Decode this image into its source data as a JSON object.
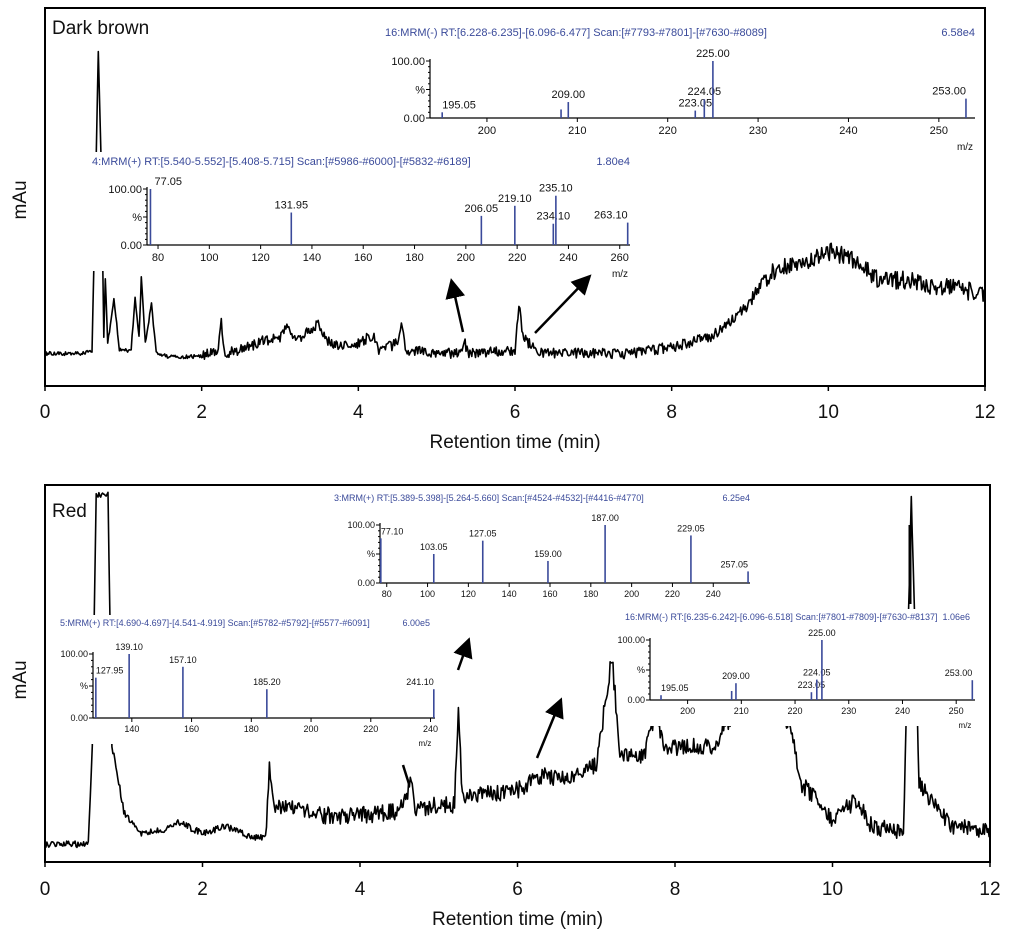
{
  "chart_data": [
    {
      "type": "line",
      "panel_label": "Dark brown",
      "xlabel": "Retention time (min)",
      "ylabel": "mAu",
      "xlim": [
        0,
        12
      ],
      "ylim": [
        0,
        100
      ],
      "xticks": [
        "0",
        "2",
        "4",
        "6",
        "8",
        "10",
        "12"
      ],
      "series": [
        {
          "name": "Dark brown",
          "points": [
            [
              0,
              5
            ],
            [
              0.5,
              5
            ],
            [
              0.6,
              6
            ],
            [
              0.65,
              60
            ],
            [
              0.68,
              97
            ],
            [
              0.72,
              60
            ],
            [
              0.75,
              10
            ],
            [
              0.77,
              28
            ],
            [
              0.8,
              8
            ],
            [
              0.88,
              22
            ],
            [
              0.95,
              6
            ],
            [
              1.1,
              6
            ],
            [
              1.15,
              22
            ],
            [
              1.2,
              10
            ],
            [
              1.23,
              28
            ],
            [
              1.28,
              8
            ],
            [
              1.36,
              20
            ],
            [
              1.42,
              5
            ],
            [
              1.6,
              4
            ],
            [
              2.0,
              4
            ],
            [
              2.2,
              6
            ],
            [
              2.25,
              14
            ],
            [
              2.3,
              5
            ],
            [
              2.6,
              7
            ],
            [
              2.8,
              9
            ],
            [
              3.0,
              10
            ],
            [
              3.1,
              13
            ],
            [
              3.2,
              9
            ],
            [
              3.4,
              12
            ],
            [
              3.5,
              14
            ],
            [
              3.6,
              9
            ],
            [
              3.8,
              7
            ],
            [
              4.0,
              8
            ],
            [
              4.2,
              11
            ],
            [
              4.25,
              6
            ],
            [
              4.5,
              8
            ],
            [
              4.55,
              15
            ],
            [
              4.6,
              6
            ],
            [
              5.0,
              5
            ],
            [
              5.3,
              5
            ],
            [
              5.35,
              9
            ],
            [
              5.4,
              5
            ],
            [
              6.0,
              6
            ],
            [
              6.05,
              20
            ],
            [
              6.1,
              10
            ],
            [
              6.3,
              5
            ],
            [
              7.0,
              5
            ],
            [
              7.5,
              5
            ],
            [
              8.0,
              7
            ],
            [
              8.5,
              10
            ],
            [
              9.0,
              20
            ],
            [
              9.3,
              30
            ],
            [
              9.6,
              32
            ],
            [
              10.0,
              36
            ],
            [
              10.3,
              34
            ],
            [
              10.6,
              28
            ],
            [
              11.0,
              27
            ],
            [
              11.5,
              25
            ],
            [
              12.0,
              23
            ]
          ]
        }
      ],
      "insets": [
        {
          "title": "16:MRM(-) RT:[6.228-6.235]-[6.096-6.477] Scan:[#7793-#7801]-[#7630-#8089]",
          "scale": "6.58e4",
          "xlabel": "m/z",
          "ylabels": [
            "100.00",
            "%",
            "0.00"
          ],
          "xlim": [
            193.7,
            254
          ],
          "xticks": [
            "200",
            "210",
            "220",
            "230",
            "240",
            "250"
          ],
          "peaks": [
            [
              195.05,
              10,
              "195.05"
            ],
            [
              208.2,
              15,
              ""
            ],
            [
              209.0,
              28,
              "209.00"
            ],
            [
              223.05,
              13,
              "223.05"
            ],
            [
              224.05,
              33,
              "224.05"
            ],
            [
              225.0,
              100,
              "225.00"
            ],
            [
              253.0,
              34,
              "253.00"
            ]
          ]
        },
        {
          "title": "4:MRM(+) RT:[5.540-5.552]-[5.408-5.715] Scan:[#5986-#6000]-[#5832-#6189]",
          "scale": "1.80e4",
          "xlabel": "m/z",
          "ylabels": [
            "100.00",
            "%",
            "0.00"
          ],
          "xlim": [
            75.7,
            264
          ],
          "xticks": [
            "80",
            "100",
            "120",
            "140",
            "160",
            "180",
            "200",
            "220",
            "240",
            "260"
          ],
          "peaks": [
            [
              77.05,
              100,
              "77.05"
            ],
            [
              131.95,
              58,
              "131.95"
            ],
            [
              206.05,
              52,
              "206.05"
            ],
            [
              219.1,
              70,
              "219.10"
            ],
            [
              234.1,
              38,
              "234.10"
            ],
            [
              235.1,
              88,
              "235.10"
            ],
            [
              263.1,
              40,
              "263.10"
            ]
          ]
        }
      ]
    },
    {
      "type": "line",
      "panel_label": "Red",
      "xlabel": "Retention time (min)",
      "ylabel": "mAu",
      "xlim": [
        0,
        12
      ],
      "ylim": [
        0,
        100
      ],
      "xticks": [
        "0",
        "2",
        "4",
        "6",
        "8",
        "10",
        "12"
      ],
      "series": [
        {
          "name": "Red",
          "points": [
            [
              0,
              3
            ],
            [
              0.55,
              3
            ],
            [
              0.6,
              30
            ],
            [
              0.65,
              100
            ],
            [
              0.8,
              100
            ],
            [
              0.85,
              30
            ],
            [
              0.9,
              25
            ],
            [
              1.0,
              12
            ],
            [
              1.2,
              6
            ],
            [
              1.5,
              7
            ],
            [
              1.7,
              9
            ],
            [
              2.0,
              6
            ],
            [
              2.3,
              8
            ],
            [
              2.6,
              5
            ],
            [
              2.8,
              5
            ],
            [
              2.85,
              25
            ],
            [
              2.9,
              14
            ],
            [
              3.5,
              11
            ],
            [
              4.0,
              11
            ],
            [
              4.5,
              12
            ],
            [
              4.65,
              20
            ],
            [
              4.7,
              12
            ],
            [
              5.0,
              14
            ],
            [
              5.2,
              14
            ],
            [
              5.25,
              40
            ],
            [
              5.3,
              16
            ],
            [
              5.6,
              17
            ],
            [
              6.0,
              18
            ],
            [
              6.3,
              22
            ],
            [
              6.5,
              21
            ],
            [
              7.0,
              25
            ],
            [
              7.2,
              55
            ],
            [
              7.3,
              28
            ],
            [
              7.6,
              27
            ],
            [
              7.75,
              40
            ],
            [
              7.85,
              30
            ],
            [
              8.0,
              30
            ],
            [
              8.5,
              30
            ],
            [
              8.7,
              38
            ],
            [
              9.0,
              50
            ],
            [
              9.3,
              45
            ],
            [
              9.5,
              31
            ],
            [
              9.6,
              20
            ],
            [
              10.0,
              10
            ],
            [
              10.3,
              15
            ],
            [
              10.5,
              8
            ],
            [
              10.9,
              6
            ],
            [
              11.0,
              100
            ],
            [
              11.1,
              20
            ],
            [
              11.5,
              8
            ],
            [
              12.0,
              7
            ]
          ]
        }
      ],
      "insets": [
        {
          "title": "3:MRM(+) RT:[5.389-5.398]-[5.264-5.660] Scan:[#4524-#4532]-[#4416-#4770]",
          "scale": "6.25e4",
          "xlabel": "",
          "ylabels": [
            "100.00",
            "%",
            "0.00"
          ],
          "xlim": [
            76.7,
            258
          ],
          "xticks": [
            "80",
            "100",
            "120",
            "140",
            "160",
            "180",
            "200",
            "220",
            "240"
          ],
          "peaks": [
            [
              77.1,
              77,
              "77.10"
            ],
            [
              103.05,
              50,
              "103.05"
            ],
            [
              127.05,
              73,
              "127.05"
            ],
            [
              159.0,
              38,
              "159.00"
            ],
            [
              187.0,
              100,
              "187.00"
            ],
            [
              229.05,
              82,
              "229.05"
            ],
            [
              257.05,
              20,
              "257.05"
            ]
          ]
        },
        {
          "title": "5:MRM(+) RT:[4.690-4.697]-[4.541-4.919] Scan:[#5782-#5792]-[#5577-#6091]",
          "scale": "6.00e5",
          "xlabel": "m/z",
          "ylabels": [
            "100.00",
            "%",
            "0.00"
          ],
          "xlim": [
            127,
            241.5
          ],
          "xticks": [
            "140",
            "160",
            "180",
            "200",
            "220",
            "240"
          ],
          "peaks": [
            [
              127.95,
              63,
              "127.95"
            ],
            [
              139.1,
              100,
              "139.10"
            ],
            [
              157.1,
              80,
              "157.10"
            ],
            [
              185.2,
              45,
              "185.20"
            ],
            [
              241.1,
              45,
              "241.10"
            ]
          ]
        },
        {
          "title": "16:MRM(-) RT:[6.235-6.242]-[6.096-6.518] Scan:[#7801-#7809]-[#7630-#8137]",
          "scale": "1.06e6",
          "xlabel": "m/z",
          "ylabels": [
            "100.00",
            "%",
            "0.00"
          ],
          "xlim": [
            193,
            253.5
          ],
          "xticks": [
            "200",
            "210",
            "220",
            "230",
            "240",
            "250"
          ],
          "peaks": [
            [
              195.05,
              8,
              "195.05"
            ],
            [
              208.2,
              15,
              ""
            ],
            [
              209.0,
              28,
              "209.00"
            ],
            [
              223.05,
              13,
              "223.05"
            ],
            [
              224.05,
              34,
              "224.05"
            ],
            [
              225.0,
              100,
              "225.00"
            ],
            [
              253.0,
              33,
              "253.00"
            ]
          ]
        }
      ]
    }
  ]
}
